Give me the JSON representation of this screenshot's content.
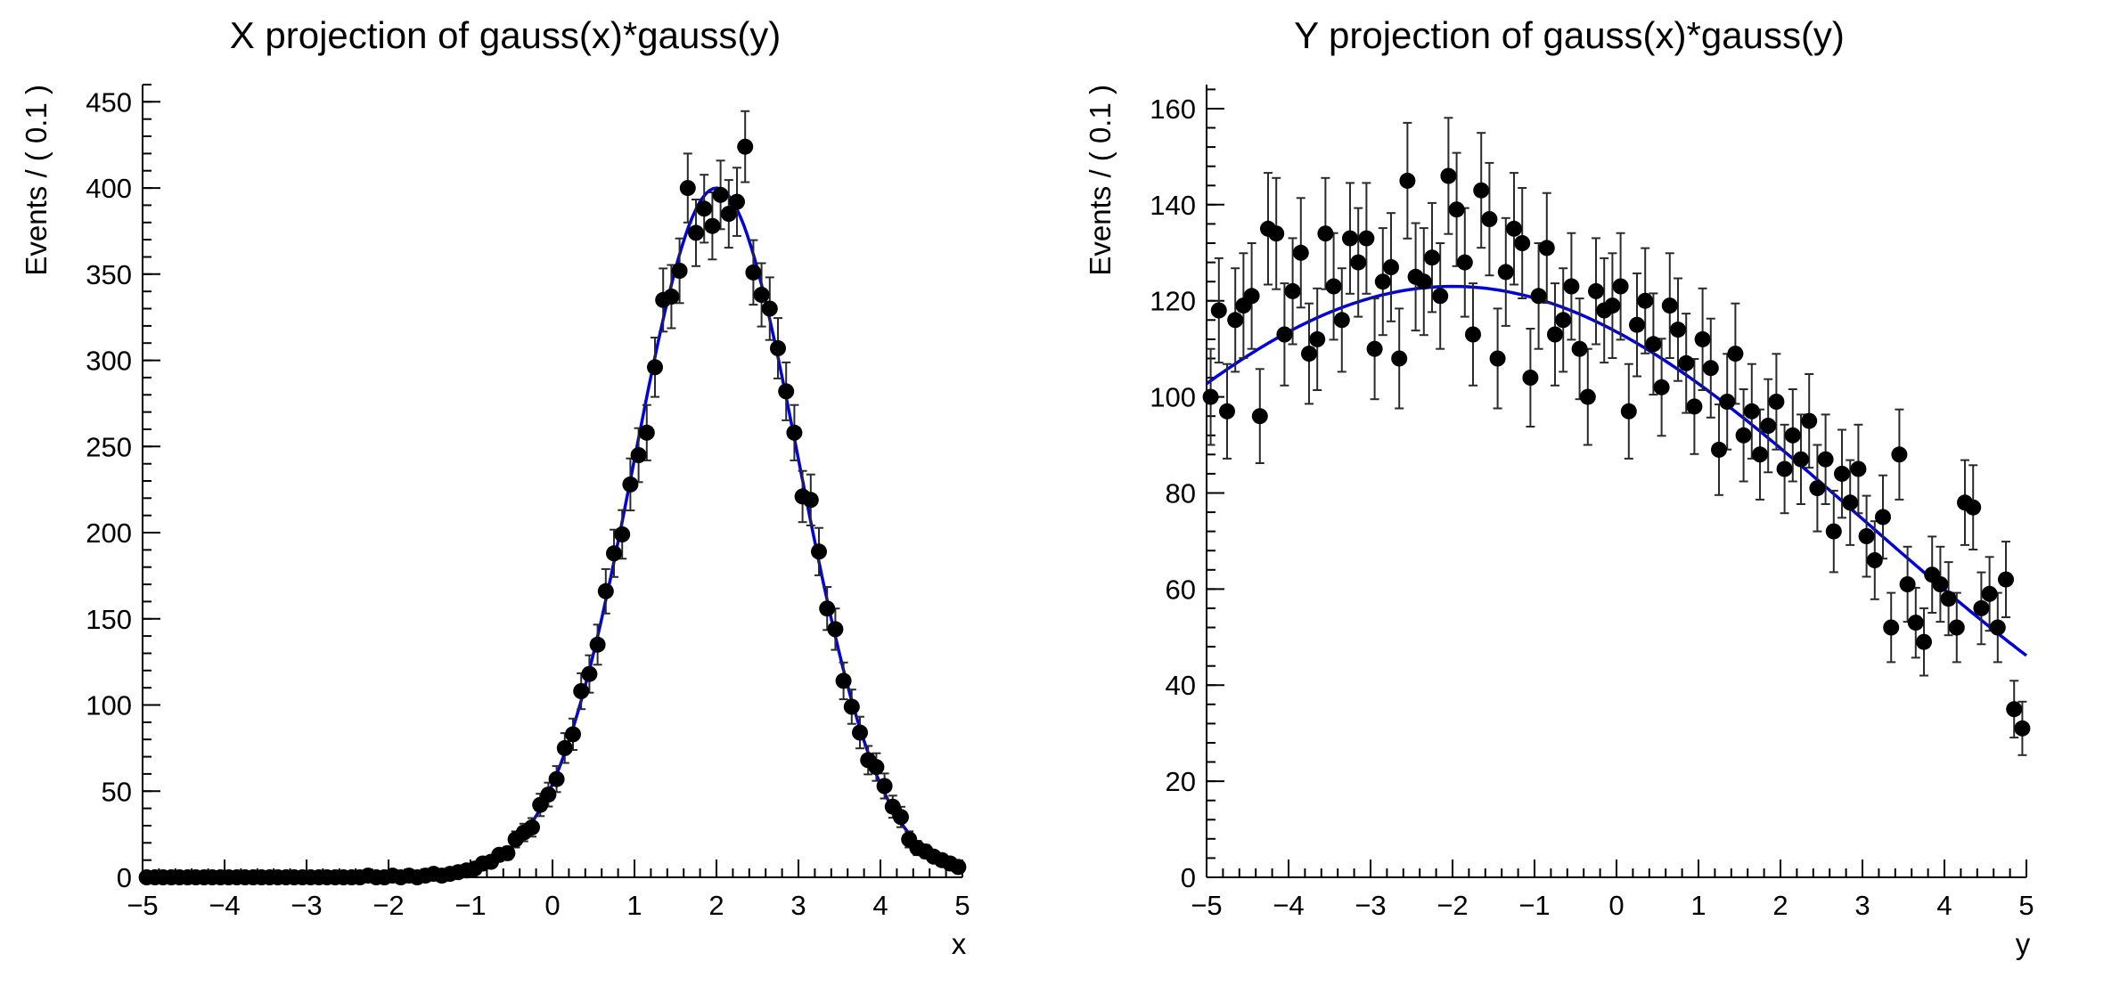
{
  "page": {
    "background": "#ffffff"
  },
  "chart_data": [
    {
      "type": "scatter",
      "title": "X projection of gauss(x)*gauss(y)",
      "xlabel": "x",
      "ylabel": "Events / ( 0.1 )",
      "xlim": [
        -5,
        5
      ],
      "ylim": [
        0,
        460
      ],
      "x_minor_step": 0.2,
      "y_minor_step": 10,
      "x_ticks": [
        {
          "v": -5,
          "label": "−5"
        },
        {
          "v": -4,
          "label": "−4"
        },
        {
          "v": -3,
          "label": "−3"
        },
        {
          "v": -2,
          "label": "−2"
        },
        {
          "v": -1,
          "label": "−1"
        },
        {
          "v": 0,
          "label": "0"
        },
        {
          "v": 1,
          "label": "1"
        },
        {
          "v": 2,
          "label": "2"
        },
        {
          "v": 3,
          "label": "3"
        },
        {
          "v": 4,
          "label": "4"
        },
        {
          "v": 5,
          "label": "5"
        }
      ],
      "y_ticks": [
        {
          "v": 0,
          "label": "0"
        },
        {
          "v": 50,
          "label": "50"
        },
        {
          "v": 100,
          "label": "100"
        },
        {
          "v": 150,
          "label": "150"
        },
        {
          "v": 200,
          "label": "200"
        },
        {
          "v": 250,
          "label": "250"
        },
        {
          "v": 300,
          "label": "300"
        },
        {
          "v": 350,
          "label": "350"
        },
        {
          "v": 400,
          "label": "400"
        },
        {
          "v": 450,
          "label": "450"
        }
      ],
      "x_bins": {
        "start": -4.95,
        "step": 0.1,
        "count": 100
      },
      "y": [
        0,
        0,
        0,
        0,
        0,
        0,
        0,
        0,
        0,
        0,
        0,
        0,
        0,
        0,
        0,
        0,
        0,
        0,
        0,
        0,
        0,
        0,
        0,
        0,
        0,
        0,
        0,
        1,
        0,
        0,
        1,
        0,
        1,
        0,
        1,
        2,
        1,
        2,
        3,
        4,
        5,
        8,
        9,
        13,
        14,
        22,
        26,
        29,
        42,
        48,
        57,
        75,
        83,
        108,
        118,
        135,
        166,
        188,
        199,
        228,
        245,
        258,
        296,
        335,
        337,
        352,
        400,
        374,
        388,
        378,
        396,
        385,
        392,
        424,
        351,
        338,
        330,
        307,
        282,
        258,
        221,
        219,
        189,
        156,
        144,
        114,
        99,
        84,
        68,
        64,
        53,
        41,
        35,
        22,
        17,
        15,
        12,
        10,
        8,
        6
      ],
      "errors": "sqrt",
      "curve": {
        "type": "gaussian",
        "amplitude": 400,
        "mean": 2,
        "sigma": 1,
        "color": "#0000dd"
      },
      "marker_color": "#000000",
      "error_color": "#2a2a2a",
      "axis_color": "#000000"
    },
    {
      "type": "scatter",
      "title": "Y projection of gauss(x)*gauss(y)",
      "xlabel": "y",
      "ylabel": "Events / ( 0.1 )",
      "xlim": [
        -5,
        5
      ],
      "ylim": [
        0,
        165
      ],
      "x_minor_step": 0.2,
      "y_minor_step": 4,
      "x_ticks": [
        {
          "v": -5,
          "label": "−5"
        },
        {
          "v": -4,
          "label": "−4"
        },
        {
          "v": -3,
          "label": "−3"
        },
        {
          "v": -2,
          "label": "−2"
        },
        {
          "v": -1,
          "label": "−1"
        },
        {
          "v": 0,
          "label": "0"
        },
        {
          "v": 1,
          "label": "1"
        },
        {
          "v": 2,
          "label": "2"
        },
        {
          "v": 3,
          "label": "3"
        },
        {
          "v": 4,
          "label": "4"
        },
        {
          "v": 5,
          "label": "5"
        }
      ],
      "y_ticks": [
        {
          "v": 0,
          "label": "0"
        },
        {
          "v": 20,
          "label": "20"
        },
        {
          "v": 40,
          "label": "40"
        },
        {
          "v": 60,
          "label": "60"
        },
        {
          "v": 80,
          "label": "80"
        },
        {
          "v": 100,
          "label": "100"
        },
        {
          "v": 120,
          "label": "120"
        },
        {
          "v": 140,
          "label": "140"
        },
        {
          "v": 160,
          "label": "160"
        }
      ],
      "x_bins": {
        "start": -4.95,
        "step": 0.1,
        "count": 100
      },
      "y": [
        100,
        118,
        97,
        116,
        119,
        121,
        96,
        135,
        134,
        113,
        122,
        130,
        109,
        112,
        134,
        123,
        116,
        133,
        128,
        133,
        110,
        124,
        127,
        108,
        145,
        125,
        124,
        129,
        121,
        146,
        139,
        128,
        113,
        143,
        137,
        108,
        126,
        135,
        132,
        104,
        121,
        131,
        113,
        116,
        123,
        110,
        100,
        122,
        118,
        119,
        123,
        97,
        115,
        120,
        111,
        102,
        119,
        114,
        107,
        98,
        112,
        106,
        89,
        99,
        109,
        92,
        97,
        88,
        94,
        99,
        85,
        92,
        87,
        95,
        81,
        87,
        72,
        84,
        78,
        85,
        71,
        66,
        75,
        52,
        88,
        61,
        53,
        49,
        63,
        61,
        58,
        52,
        78,
        77,
        56,
        59,
        52,
        62,
        35,
        31
      ],
      "errors": "sqrt",
      "curve": {
        "type": "gaussian",
        "amplitude": 123,
        "mean": -2,
        "sigma": 5,
        "color": "#0000dd"
      },
      "marker_color": "#000000",
      "error_color": "#2a2a2a",
      "axis_color": "#000000"
    }
  ]
}
